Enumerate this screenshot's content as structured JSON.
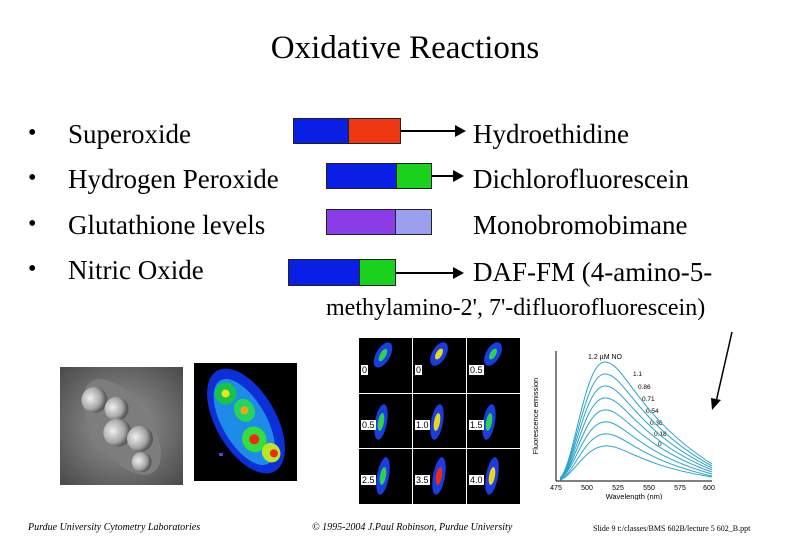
{
  "slide": {
    "title": "Oxidative Reactions",
    "rows": [
      {
        "label": "Superoxide",
        "probe": "Hydroethidine",
        "colors": [
          "#0a1fe6",
          "#ee3814"
        ]
      },
      {
        "label": "Hydrogen Peroxide",
        "probe": "Dichlorofluorescein",
        "colors": [
          "#0a1fe6",
          "#18d21e"
        ]
      },
      {
        "label": "Glutathione levels",
        "probe": "Monobromobimane",
        "colors": [
          "#8a3ce6",
          "#9aa0ee"
        ]
      },
      {
        "label": "Nitric Oxide",
        "probe": "DAF-FM (4-amino-5-",
        "colors": [
          "#0a1fe6",
          "#18d21e"
        ]
      }
    ],
    "probe_continuation": "methylamino-2', 7'-difluorofluorescein)",
    "bullet_symbol": "•"
  },
  "panel_labels": [
    "0",
    "0",
    "0.5",
    "0.5",
    "1.0",
    "1.5",
    "2.5",
    "3.5",
    "4.0"
  ],
  "chart": {
    "top_label": "1.2 µM NO",
    "series_labels": [
      "1.1",
      "0.86",
      "0.71",
      "0.54",
      "0.36",
      "0.18",
      "0"
    ],
    "xlabel": "Wavelength (nm)",
    "ylabel": "Fluorescence emission",
    "x_ticks": [
      "475",
      "500",
      "525",
      "550",
      "575",
      "600"
    ]
  },
  "footer": {
    "left": "Purdue University Cytometry Laboratories",
    "center": "© 1995-2004 J.Paul Robinson, Purdue University",
    "right": "Slide 9 t:/classes/BMS 602B/lecture 5 602_B.ppt"
  }
}
